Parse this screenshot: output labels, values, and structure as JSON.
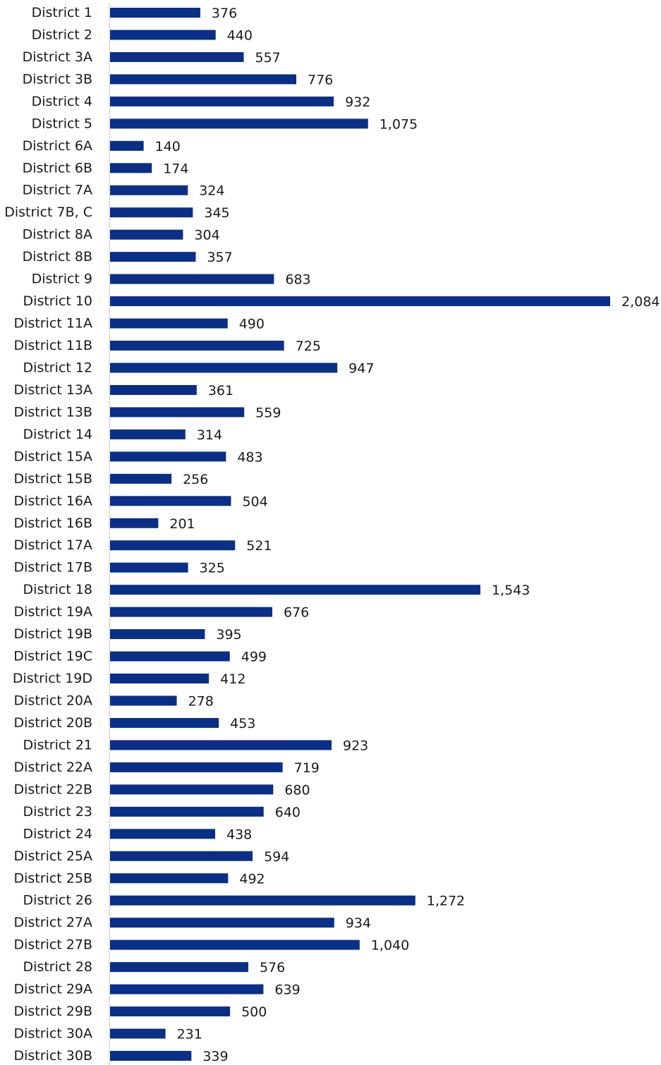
{
  "chart_data": {
    "type": "bar",
    "orientation": "horizontal",
    "title": "",
    "xlabel": "",
    "ylabel": "",
    "bar_color": "#0a2f86",
    "grid": false,
    "legend": "none",
    "xlim": [
      0,
      2084
    ],
    "categories": [
      "District 1",
      "District 2",
      "District 3A",
      "District 3B",
      "District 4",
      "District 5",
      "District 6A",
      "District 6B",
      "District 7A",
      "District 7B, C",
      "District 8A",
      "District 8B",
      "District 9",
      "District 10",
      "District 11A",
      "District 11B",
      "District 12",
      "District 13A",
      "District 13B",
      "District 14",
      "District 15A",
      "District 15B",
      "District 16A",
      "District 16B",
      "District 17A",
      "District 17B",
      "District 18",
      "District 19A",
      "District 19B",
      "District 19C",
      "District 19D",
      "District 20A",
      "District 20B",
      "District 21",
      "District 22A",
      "District 22B",
      "District 23",
      "District 24",
      "District 25A",
      "District 25B",
      "District 26",
      "District 27A",
      "District 27B",
      "District 28",
      "District 29A",
      "District 29B",
      "District 30A",
      "District 30B"
    ],
    "values": [
      376,
      440,
      557,
      776,
      932,
      1075,
      140,
      174,
      324,
      345,
      304,
      357,
      683,
      2084,
      490,
      725,
      947,
      361,
      559,
      314,
      483,
      256,
      504,
      201,
      521,
      325,
      1543,
      676,
      395,
      499,
      412,
      278,
      453,
      923,
      719,
      680,
      640,
      438,
      594,
      492,
      1272,
      934,
      1040,
      576,
      639,
      500,
      231,
      339
    ],
    "value_labels": [
      "376",
      "440",
      "557",
      "776",
      "932",
      "1,075",
      "140",
      "174",
      "324",
      "345",
      "304",
      "357",
      "683",
      "2,084",
      "490",
      "725",
      "947",
      "361",
      "559",
      "314",
      "483",
      "256",
      "504",
      "201",
      "521",
      "325",
      "1,543",
      "676",
      "395",
      "499",
      "412",
      "278",
      "453",
      "923",
      "719",
      "680",
      "640",
      "438",
      "594",
      "492",
      "1,272",
      "934",
      "1,040",
      "576",
      "639",
      "500",
      "231",
      "339"
    ]
  }
}
